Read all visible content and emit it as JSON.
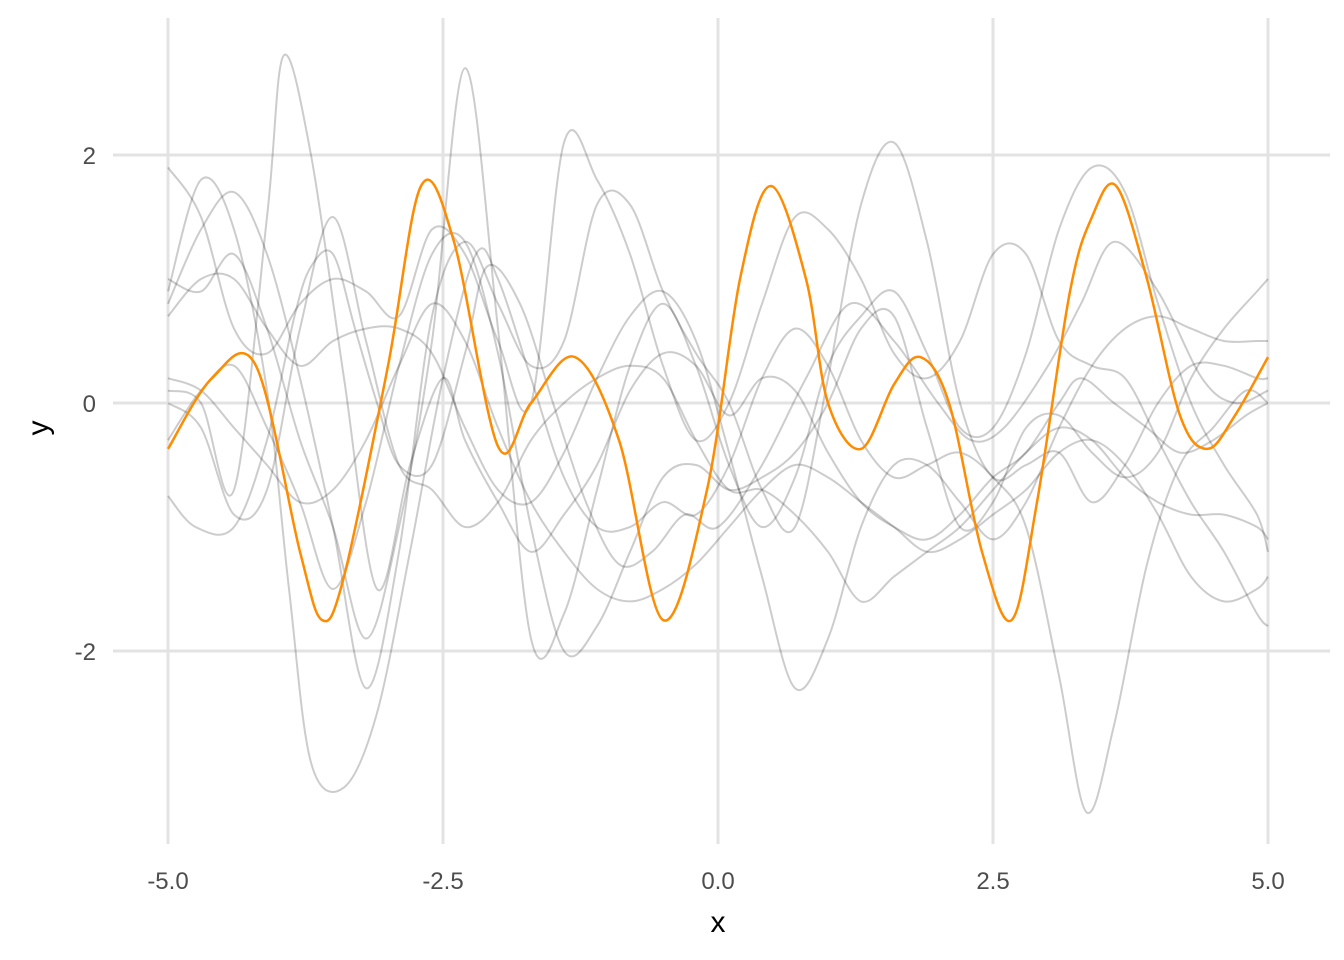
{
  "chart_data": {
    "type": "line",
    "title": "",
    "xlabel": "x",
    "ylabel": "y",
    "xlim": [
      -5.0,
      5.0
    ],
    "ylim": [
      -3.4,
      3.0
    ],
    "grid": true,
    "legend": "none",
    "x_ticks": [
      {
        "value": -5.0,
        "label": "-5.0"
      },
      {
        "value": -2.5,
        "label": "-2.5"
      },
      {
        "value": 0.0,
        "label": "0.0"
      },
      {
        "value": 2.5,
        "label": "2.5"
      },
      {
        "value": 5.0,
        "label": "5.0"
      }
    ],
    "y_ticks": [
      {
        "value": -2,
        "label": "-2"
      },
      {
        "value": 0,
        "label": "0"
      },
      {
        "value": 2,
        "label": "2"
      }
    ],
    "background_sample_color": "#000000",
    "background_sample_opacity": 0.2,
    "highlight_color": "#ff8c00",
    "highlight_series": {
      "x": [
        -5.0,
        -4.6,
        -4.2,
        -3.8,
        -3.6,
        -3.4,
        -3.0,
        -2.7,
        -2.4,
        -2.0,
        -1.7,
        -1.3,
        -0.9,
        -0.5,
        -0.1,
        0.2,
        0.48,
        0.8,
        1.0,
        1.3,
        1.6,
        1.84,
        2.1,
        2.4,
        2.67,
        2.9,
        3.2,
        3.4,
        3.62,
        3.9,
        4.2,
        4.45,
        4.7,
        5.0
      ],
      "y": [
        -0.37,
        0.2,
        0.3,
        -1.2,
        -1.75,
        -1.4,
        0.3,
        1.75,
        1.3,
        -0.35,
        0.0,
        0.37,
        -0.3,
        -1.75,
        -0.7,
        1.0,
        1.75,
        1.0,
        0.0,
        -0.37,
        0.15,
        0.37,
        0.0,
        -1.2,
        -1.75,
        -0.8,
        0.9,
        1.5,
        1.75,
        1.0,
        -0.1,
        -0.37,
        -0.1,
        0.37
      ]
    },
    "series": [
      {
        "x": [
          -5.0,
          -4.75,
          -4.4,
          -4.1,
          -3.85,
          -3.7,
          -3.5,
          -3.3,
          -3.1,
          -2.9,
          -2.6,
          -2.3,
          -2.1,
          -1.8,
          -1.5,
          -1.2,
          -0.9,
          -0.6,
          -0.3,
          0.0,
          0.4,
          0.8,
          1.2,
          1.6,
          2.0,
          2.3,
          2.6,
          3.0,
          3.3,
          3.6,
          4.0,
          4.4,
          4.7,
          5.0
        ],
        "y": [
          -0.75,
          -1.0,
          -1.0,
          -0.3,
          0.7,
          1.1,
          1.2,
          0.6,
          0.0,
          -0.5,
          -0.5,
          0.4,
          1.1,
          0.8,
          0.0,
          -0.8,
          -1.3,
          -1.2,
          -0.9,
          -1.0,
          -0.5,
          0.2,
          0.8,
          0.5,
          0.0,
          -0.3,
          -0.2,
          0.3,
          0.8,
          1.3,
          0.9,
          0.2,
          0.0,
          0.1
        ]
      },
      {
        "x": [
          -5.0,
          -4.7,
          -4.4,
          -4.1,
          -3.9,
          -3.7,
          -3.4,
          -3.1,
          -2.8,
          -2.5,
          -2.2,
          -2.0,
          -1.7,
          -1.4,
          -1.1,
          -0.8,
          -0.5,
          -0.2,
          0.1,
          0.4,
          0.7,
          1.0,
          1.3,
          1.6,
          1.9,
          2.2,
          2.5,
          2.8,
          3.1,
          3.35,
          3.6,
          3.9,
          4.2,
          4.5,
          4.8,
          5.0
        ],
        "y": [
          0.9,
          1.8,
          1.4,
          0.1,
          -1.5,
          -2.9,
          -3.1,
          -2.5,
          -1.2,
          0.2,
          1.2,
          1.0,
          0.2,
          -0.6,
          -1.0,
          -1.0,
          -0.8,
          -0.9,
          -0.5,
          0.2,
          0.6,
          0.3,
          -0.3,
          -0.6,
          -0.5,
          -0.4,
          -0.6,
          -1.0,
          -2.2,
          -3.3,
          -2.6,
          -1.3,
          -0.5,
          -0.2,
          0.1,
          0.0
        ]
      },
      {
        "x": [
          -5.0,
          -4.7,
          -4.4,
          -4.1,
          -3.95,
          -3.7,
          -3.4,
          -3.1,
          -2.8,
          -2.5,
          -2.3,
          -2.0,
          -1.7,
          -1.4,
          -1.1,
          -0.8,
          -0.5,
          -0.2,
          0.1,
          0.4,
          0.7,
          1.0,
          1.3,
          1.6,
          1.9,
          2.2,
          2.5,
          2.8,
          3.1,
          3.3,
          3.6,
          3.9,
          4.2,
          4.5,
          4.8,
          5.0
        ],
        "y": [
          0.1,
          0.0,
          -0.7,
          1.5,
          2.8,
          2.0,
          0.2,
          -1.5,
          -0.5,
          0.2,
          -0.3,
          -0.8,
          -1.2,
          -0.9,
          -0.5,
          0.1,
          0.4,
          0.3,
          -0.1,
          0.2,
          0.1,
          -0.4,
          -0.8,
          -1.0,
          -1.1,
          -0.9,
          -0.6,
          -0.4,
          0.0,
          0.2,
          0.0,
          -0.2,
          -0.4,
          -0.3,
          -0.1,
          0.0
        ]
      },
      {
        "x": [
          -5.0,
          -4.7,
          -4.4,
          -4.1,
          -3.8,
          -3.5,
          -3.2,
          -2.9,
          -2.6,
          -2.3,
          -2.0,
          -1.7,
          -1.4,
          -1.1,
          -0.8,
          -0.5,
          -0.2,
          0.1,
          0.4,
          0.7,
          1.0,
          1.3,
          1.6,
          1.9,
          2.2,
          2.5,
          2.8,
          3.1,
          3.4,
          3.7,
          4.0,
          4.3,
          4.6,
          4.9,
          5.0
        ],
        "y": [
          1.0,
          0.9,
          1.2,
          0.6,
          -0.3,
          -1.0,
          -1.9,
          -1.0,
          0.5,
          2.7,
          0.6,
          -1.9,
          -1.7,
          -0.7,
          0.3,
          0.8,
          0.3,
          -0.5,
          -1.0,
          -0.6,
          0.3,
          0.7,
          0.9,
          0.4,
          -0.2,
          -0.2,
          0.4,
          1.4,
          1.9,
          1.7,
          0.8,
          0.0,
          -0.5,
          -0.9,
          -1.2
        ]
      },
      {
        "x": [
          -5.0,
          -4.7,
          -4.4,
          -4.1,
          -3.8,
          -3.5,
          -3.2,
          -2.9,
          -2.6,
          -2.3,
          -2.0,
          -1.7,
          -1.4,
          -1.1,
          -0.8,
          -0.5,
          -0.2,
          0.1,
          0.4,
          0.7,
          1.0,
          1.3,
          1.6,
          1.9,
          2.2,
          2.5,
          2.8,
          3.1,
          3.4,
          3.7,
          4.0,
          4.3,
          4.6,
          4.9,
          5.0
        ],
        "y": [
          1.9,
          1.5,
          0.6,
          0.4,
          0.8,
          1.0,
          0.9,
          0.7,
          1.4,
          1.2,
          0.5,
          0.0,
          2.1,
          1.8,
          1.2,
          0.3,
          -0.3,
          0.0,
          0.8,
          1.5,
          1.4,
          1.0,
          0.4,
          0.2,
          0.5,
          1.2,
          1.2,
          0.5,
          0.3,
          0.2,
          -0.3,
          -0.8,
          -1.2,
          -1.7,
          -1.8
        ]
      },
      {
        "x": [
          -5.0,
          -4.7,
          -4.4,
          -4.1,
          -3.8,
          -3.5,
          -3.2,
          -2.9,
          -2.6,
          -2.3,
          -2.0,
          -1.7,
          -1.4,
          -1.1,
          -0.8,
          -0.5,
          -0.2,
          0.1,
          0.4,
          0.7,
          1.0,
          1.3,
          1.6,
          1.9,
          2.2,
          2.5,
          2.8,
          3.1,
          3.4,
          3.7,
          4.0,
          4.3,
          4.6,
          4.9,
          5.0
        ],
        "y": [
          0.8,
          1.4,
          1.7,
          1.2,
          0.2,
          -1.0,
          -2.3,
          -1.2,
          0.7,
          1.3,
          0.8,
          0.3,
          0.5,
          1.6,
          1.6,
          0.9,
          0.4,
          0.0,
          -0.7,
          -1.0,
          0.2,
          1.6,
          2.1,
          1.3,
          0.0,
          -0.6,
          -0.5,
          -0.4,
          -0.8,
          -0.5,
          0.0,
          0.3,
          0.3,
          0.2,
          0.2
        ]
      },
      {
        "x": [
          -5.0,
          -4.7,
          -4.4,
          -4.1,
          -3.8,
          -3.5,
          -3.2,
          -2.9,
          -2.6,
          -2.3,
          -2.0,
          -1.7,
          -1.4,
          -1.1,
          -0.8,
          -0.5,
          -0.2,
          0.1,
          0.4,
          0.7,
          1.0,
          1.3,
          1.6,
          1.9,
          2.2,
          2.5,
          2.8,
          3.1,
          3.4,
          3.7,
          4.0,
          4.3,
          4.6,
          4.9,
          5.0
        ],
        "y": [
          0.7,
          1.0,
          1.0,
          0.6,
          0.3,
          0.5,
          0.6,
          0.6,
          0.4,
          -0.2,
          -0.7,
          -0.8,
          -0.4,
          0.2,
          0.7,
          0.9,
          0.5,
          -0.4,
          -1.4,
          -2.3,
          -1.9,
          -1.0,
          -0.5,
          -0.5,
          -0.8,
          -1.1,
          -0.8,
          -0.2,
          0.3,
          0.6,
          0.7,
          0.6,
          0.5,
          0.5,
          0.5
        ]
      },
      {
        "x": [
          -5.0,
          -4.7,
          -4.4,
          -4.1,
          -3.8,
          -3.5,
          -3.2,
          -2.9,
          -2.6,
          -2.3,
          -2.0,
          -1.7,
          -1.4,
          -1.1,
          -0.8,
          -0.5,
          -0.2,
          0.1,
          0.4,
          0.7,
          1.0,
          1.3,
          1.6,
          1.9,
          2.2,
          2.5,
          2.8,
          3.1,
          3.4,
          3.7,
          4.0,
          4.3,
          4.6,
          4.9,
          5.0
        ],
        "y": [
          -0.3,
          0.1,
          0.3,
          -0.2,
          -0.8,
          -1.5,
          -0.8,
          0.3,
          1.2,
          1.3,
          0.4,
          -1.0,
          -2.0,
          -1.8,
          -1.2,
          -0.6,
          -0.5,
          -0.7,
          -0.6,
          -0.4,
          0.0,
          0.6,
          0.7,
          -0.2,
          -1.0,
          -0.8,
          -0.2,
          -0.1,
          -0.4,
          -0.6,
          -0.4,
          0.2,
          0.6,
          0.9,
          1.0
        ]
      },
      {
        "x": [
          -5.0,
          -4.7,
          -4.4,
          -4.1,
          -3.8,
          -3.5,
          -3.2,
          -2.9,
          -2.6,
          -2.3,
          -2.0,
          -1.7,
          -1.4,
          -1.1,
          -0.8,
          -0.5,
          -0.2,
          0.1,
          0.4,
          0.7,
          1.0,
          1.3,
          1.6,
          1.9,
          2.2,
          2.5,
          2.8,
          3.1,
          3.4,
          3.7,
          4.0,
          4.3,
          4.6,
          4.9,
          5.0
        ],
        "y": [
          0.0,
          -0.2,
          -0.9,
          -0.7,
          0.6,
          1.5,
          0.5,
          -0.5,
          -0.7,
          -1.0,
          -0.8,
          -0.3,
          0.0,
          0.2,
          0.3,
          0.2,
          -0.3,
          -0.7,
          -0.7,
          -0.9,
          -1.2,
          -1.6,
          -1.4,
          -1.2,
          -1.0,
          -0.7,
          -0.4,
          -0.2,
          -0.3,
          -0.6,
          -0.8,
          -0.9,
          -0.9,
          -1.0,
          -1.1
        ]
      },
      {
        "x": [
          -5.0,
          -4.7,
          -4.4,
          -4.1,
          -3.8,
          -3.5,
          -3.2,
          -2.9,
          -2.6,
          -2.3,
          -2.0,
          -1.7,
          -1.4,
          -1.1,
          -0.8,
          -0.5,
          -0.2,
          0.1,
          0.4,
          0.7,
          1.0,
          1.3,
          1.6,
          1.9,
          2.2,
          2.5,
          2.8,
          3.1,
          3.4,
          3.7,
          4.0,
          4.3,
          4.6,
          4.9,
          5.0
        ],
        "y": [
          0.2,
          0.1,
          -0.2,
          -0.5,
          -0.8,
          -0.7,
          -0.3,
          0.3,
          0.8,
          0.5,
          -0.2,
          -0.8,
          -1.2,
          -1.5,
          -1.6,
          -1.5,
          -1.3,
          -1.0,
          -0.7,
          -0.5,
          -0.6,
          -0.8,
          -1.0,
          -1.2,
          -1.1,
          -0.9,
          -0.7,
          -0.4,
          -0.3,
          -0.5,
          -0.9,
          -1.4,
          -1.6,
          -1.5,
          -1.4
        ]
      }
    ]
  }
}
